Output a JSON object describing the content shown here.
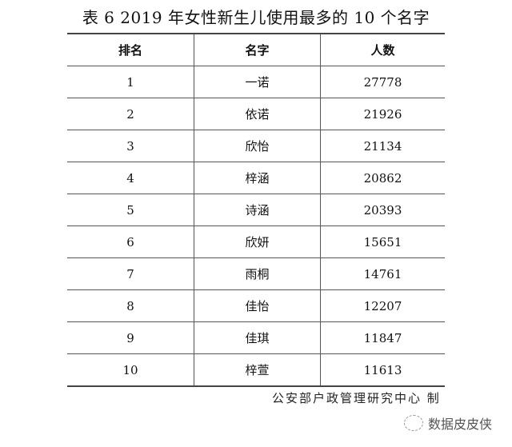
{
  "title": "表 6   2019 年女性新生儿使用最多的 10 个名字",
  "table": {
    "headers": [
      "排名",
      "名字",
      "人数"
    ],
    "rows": [
      [
        "1",
        "一诺",
        "27778"
      ],
      [
        "2",
        "依诺",
        "21926"
      ],
      [
        "3",
        "欣怡",
        "21134"
      ],
      [
        "4",
        "梓涵",
        "20862"
      ],
      [
        "5",
        "诗涵",
        "20393"
      ],
      [
        "6",
        "欣妍",
        "15651"
      ],
      [
        "7",
        "雨桐",
        "14761"
      ],
      [
        "8",
        "佳怡",
        "12207"
      ],
      [
        "9",
        "佳琪",
        "11847"
      ],
      [
        "10",
        "梓萱",
        "11613"
      ]
    ]
  },
  "source": "公安部户政管理研究中心 制",
  "watermark": {
    "icon": "wechat-icon",
    "text": "数据皮皮侠"
  }
}
